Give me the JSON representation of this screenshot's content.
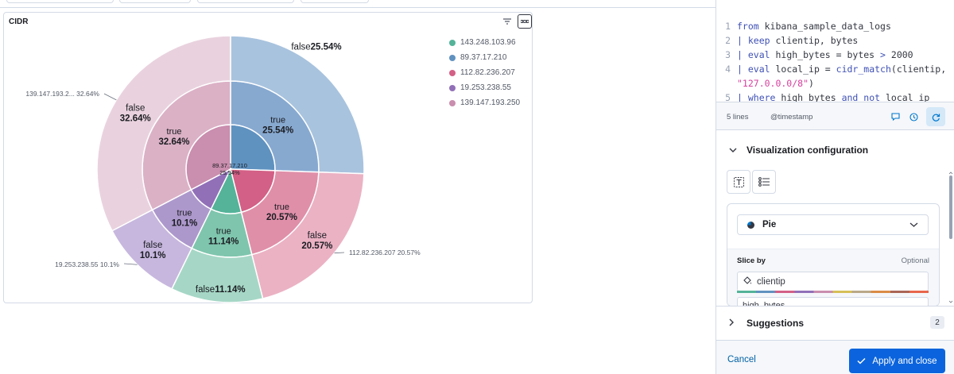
{
  "panel": {
    "title": "CIDR",
    "filter_icon": "filter-icon",
    "options_icon": "options-icon"
  },
  "legend": [
    {
      "label": "143.248.103.96",
      "color": "#54b399"
    },
    {
      "label": "89.37.17.210",
      "color": "#6092c0"
    },
    {
      "label": "112.82.236.207",
      "color": "#d36086"
    },
    {
      "label": "19.253.238.55",
      "color": "#9170b8"
    },
    {
      "label": "139.147.193.250",
      "color": "#ca8eae"
    }
  ],
  "chart_data": {
    "type": "pie",
    "title": "CIDR",
    "inner": [
      {
        "name": "89.37.17.210",
        "value": 25.54,
        "color": "#6092c0",
        "label": "89.37.17.210",
        "pct": "25.54%"
      },
      {
        "name": "112.82.236.207",
        "value": 20.57,
        "color": "#d36086",
        "label": "",
        "pct": ""
      },
      {
        "name": "143.248.103.96",
        "value": 11.14,
        "color": "#54b399",
        "label": "",
        "pct": ""
      },
      {
        "name": "19.253.238.55",
        "value": 10.1,
        "color": "#9170b8",
        "label": "",
        "pct": ""
      },
      {
        "name": "139.147.193.250",
        "value": 32.64,
        "color": "#ca8eae",
        "label": "",
        "pct": ""
      }
    ],
    "middle": [
      {
        "label": "true",
        "pct": "25.54%",
        "value": 25.54,
        "color": "#87a9d0"
      },
      {
        "label": "true",
        "pct": "20.57%",
        "value": 20.57,
        "color": "#e08fa9"
      },
      {
        "label": "true",
        "pct": "11.14%",
        "value": 11.14,
        "color": "#7fc5ad"
      },
      {
        "label": "true",
        "pct": "10.1%",
        "value": 10.1,
        "color": "#ad98cc"
      },
      {
        "label": "true",
        "pct": "32.64%",
        "value": 32.64,
        "color": "#dbb1c6"
      }
    ],
    "outer": [
      {
        "label": "false",
        "pct": "25.54%",
        "value": 25.54,
        "color": "#a8c3de"
      },
      {
        "label": "false",
        "pct": "20.57%",
        "value": 20.57,
        "color": "#ebb2c4"
      },
      {
        "label": "false",
        "pct": "11.14%",
        "value": 11.14,
        "color": "#a6d7c6"
      },
      {
        "label": "false",
        "pct": "10.1%",
        "value": 10.1,
        "color": "#c7b7de"
      },
      {
        "label": "false",
        "pct": "32.64%",
        "value": 32.64,
        "color": "#e9d2de"
      }
    ],
    "callouts": [
      {
        "text": "139.147.193.2...  32.64%",
        "slice": 4
      },
      {
        "text": "112.82.236.207  20.57%",
        "slice": 1
      },
      {
        "text": "19.253.238.55  10.1%",
        "slice": 3
      }
    ]
  },
  "editor": {
    "lines": [
      {
        "n": "1",
        "parts": [
          [
            "kw",
            "from"
          ],
          [
            "code",
            " kibana_sample_data_logs"
          ]
        ]
      },
      {
        "n": "2",
        "parts": [
          [
            "op",
            "| "
          ],
          [
            "kw",
            "keep"
          ],
          [
            "code",
            " clientip, bytes"
          ]
        ]
      },
      {
        "n": "3",
        "parts": [
          [
            "op",
            "| "
          ],
          [
            "kw",
            "eval"
          ],
          [
            "code",
            " high_bytes = bytes "
          ],
          [
            "op",
            ">"
          ],
          [
            "code",
            " 2000"
          ]
        ]
      },
      {
        "n": "4",
        "parts": [
          [
            "op",
            "| "
          ],
          [
            "kw",
            "eval"
          ],
          [
            "code",
            " local_ip = "
          ],
          [
            "kw",
            "cidr_match"
          ],
          [
            "code",
            "(clientip,"
          ]
        ]
      },
      {
        "n": "",
        "parts": [
          [
            "str",
            "\"127.0.0.0/8\""
          ],
          [
            "code",
            ")"
          ]
        ]
      },
      {
        "n": "5",
        "parts": [
          [
            "op",
            "| "
          ],
          [
            "kw",
            "where"
          ],
          [
            "code",
            " high_bytes "
          ],
          [
            "kw",
            "and not"
          ],
          [
            "code",
            " local_ip"
          ]
        ]
      }
    ],
    "line_count": "5 lines",
    "timestamp": "@timestamp"
  },
  "config": {
    "title": "Visualization configuration",
    "chart_type": "Pie",
    "slice_by": "Slice by",
    "optional": "Optional",
    "dimension1": "clientip",
    "dimension2": "high_bytes"
  },
  "suggestions": {
    "title": "Suggestions",
    "count": "2"
  },
  "footer": {
    "cancel": "Cancel",
    "apply": "Apply and close"
  }
}
